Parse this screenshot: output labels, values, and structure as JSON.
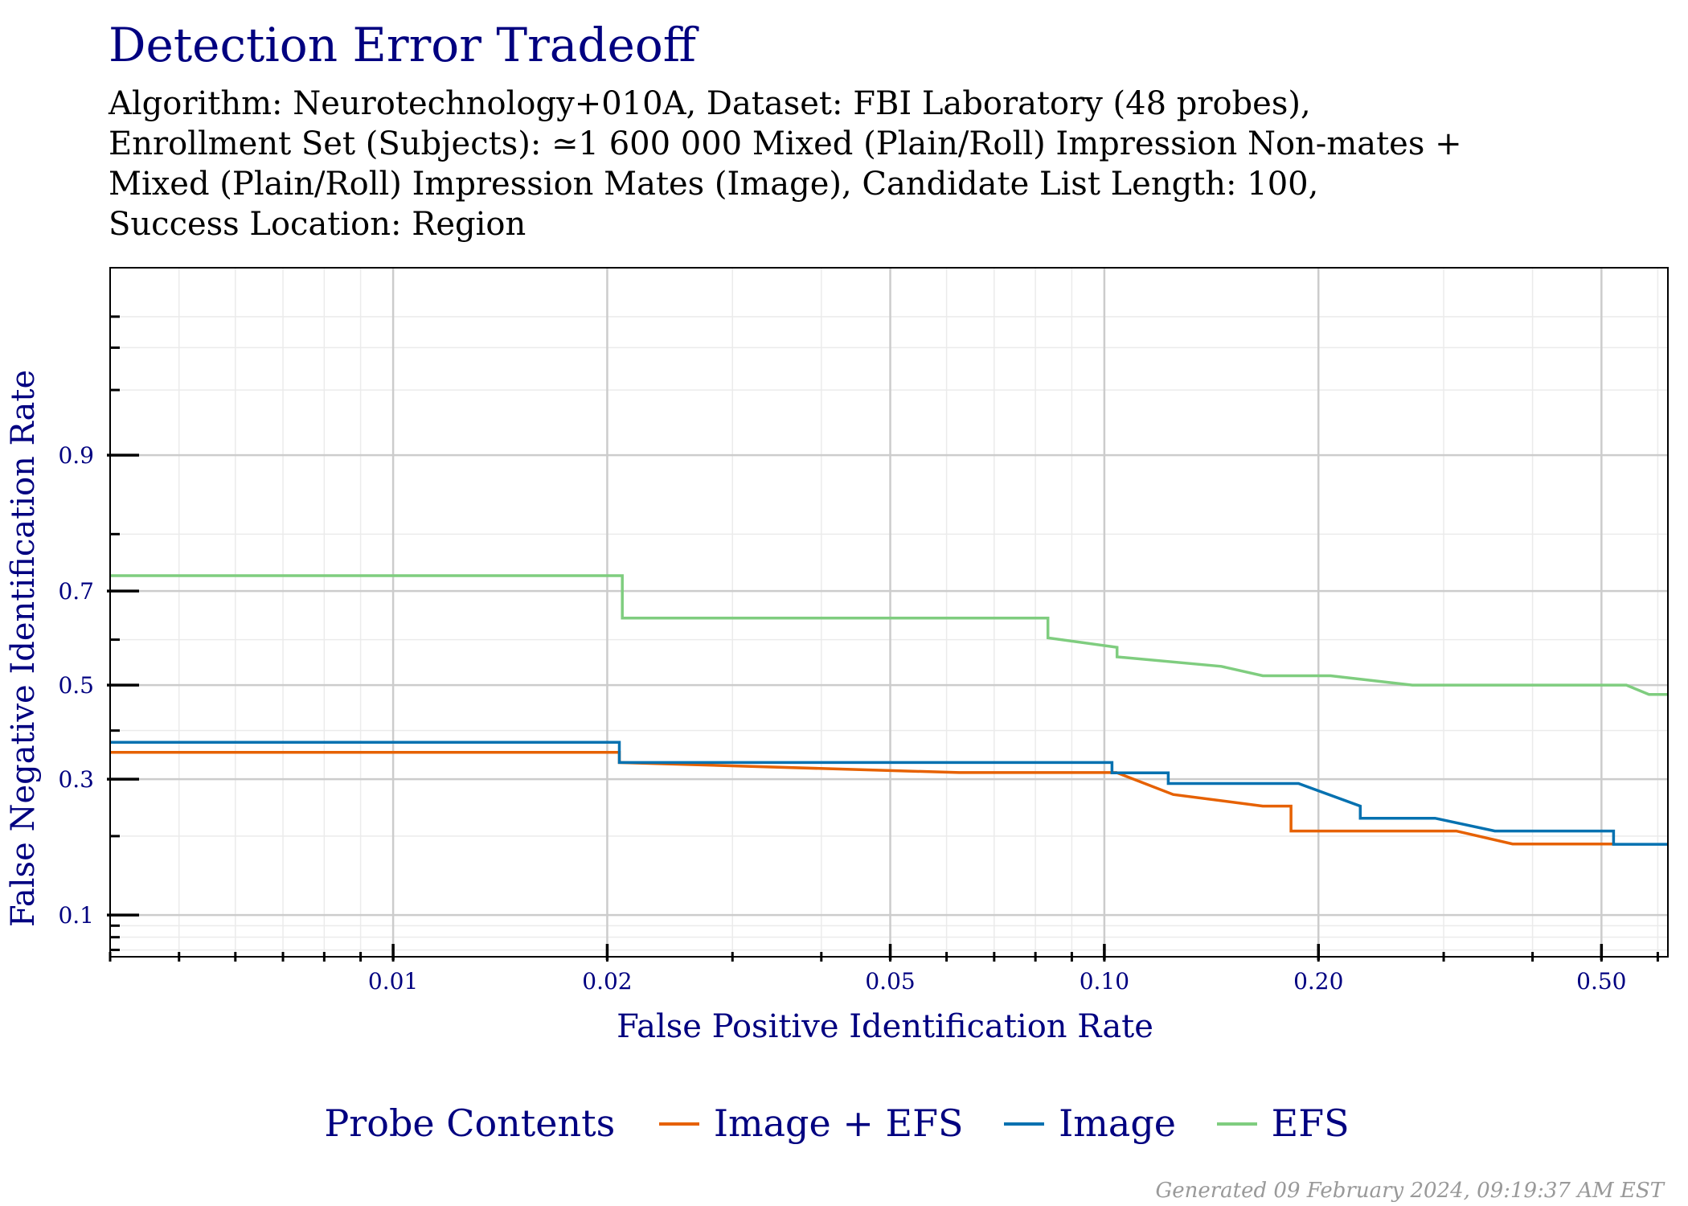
{
  "title": "Detection Error Tradeoff",
  "subtitle_lines": [
    "Algorithm: Neurotechnology+010A, Dataset: FBI Laboratory (48 probes),",
    "Enrollment Set (Subjects): ≃1 600 000 Mixed (Plain/Roll) Impression Non-mates +",
    "Mixed (Plain/Roll) Impression Mates (Image), Candidate List Length: 100,",
    "Success Location: Region"
  ],
  "footer": "Generated 09 February 2024, 09:19:37 AM EST",
  "legend": {
    "title": "Probe Contents",
    "placement": "bottom"
  },
  "chart_data": {
    "type": "line",
    "title": "Detection Error Tradeoff",
    "xlabel": "False Positive Identification Rate",
    "ylabel": "False Negative Identification Rate",
    "x_scale": "log",
    "y_scale": "probit",
    "xlim": [
      0.004,
      0.62
    ],
    "ylim": [
      0.065,
      0.99
    ],
    "grid": true,
    "x_ticks": [
      0.01,
      0.02,
      0.05,
      0.1,
      0.2,
      0.5
    ],
    "x_tick_labels": [
      "0.01",
      "0.02",
      "0.05",
      "0.10",
      "0.20",
      "0.50"
    ],
    "y_ticks": [
      0.1,
      0.3,
      0.5,
      0.7,
      0.9
    ],
    "y_tick_labels": [
      "0.1",
      "0.3",
      "0.5",
      "0.7",
      "0.9"
    ],
    "series": [
      {
        "name": "Image + EFS",
        "color": "#E66101",
        "points": [
          [
            0.004,
            0.354
          ],
          [
            0.0208,
            0.354
          ],
          [
            0.0208,
            0.333
          ],
          [
            0.0625,
            0.313
          ],
          [
            0.104,
            0.313
          ],
          [
            0.125,
            0.271
          ],
          [
            0.167,
            0.25
          ],
          [
            0.183,
            0.25
          ],
          [
            0.183,
            0.208
          ],
          [
            0.3125,
            0.208
          ],
          [
            0.375,
            0.188
          ],
          [
            0.52,
            0.188
          ]
        ]
      },
      {
        "name": "Image",
        "color": "#0571B0",
        "points": [
          [
            0.004,
            0.375
          ],
          [
            0.0208,
            0.375
          ],
          [
            0.0208,
            0.333
          ],
          [
            0.1025,
            0.333
          ],
          [
            0.1025,
            0.3125
          ],
          [
            0.123,
            0.3125
          ],
          [
            0.123,
            0.2917
          ],
          [
            0.1875,
            0.2917
          ],
          [
            0.229,
            0.25
          ],
          [
            0.229,
            0.229
          ],
          [
            0.2917,
            0.229
          ],
          [
            0.354,
            0.208
          ],
          [
            0.52,
            0.208
          ],
          [
            0.52,
            0.1875
          ],
          [
            0.62,
            0.1875
          ]
        ]
      },
      {
        "name": "EFS",
        "color": "#7FCD7F",
        "points": [
          [
            0.004,
            0.729
          ],
          [
            0.021,
            0.729
          ],
          [
            0.021,
            0.6458
          ],
          [
            0.0833,
            0.6458
          ],
          [
            0.0833,
            0.604
          ],
          [
            0.1042,
            0.5833
          ],
          [
            0.1042,
            0.5625
          ],
          [
            0.146,
            0.5417
          ],
          [
            0.167,
            0.5208
          ],
          [
            0.208,
            0.5208
          ],
          [
            0.271,
            0.5
          ],
          [
            0.542,
            0.5
          ],
          [
            0.583,
            0.4792
          ],
          [
            0.62,
            0.4792
          ]
        ]
      }
    ]
  }
}
